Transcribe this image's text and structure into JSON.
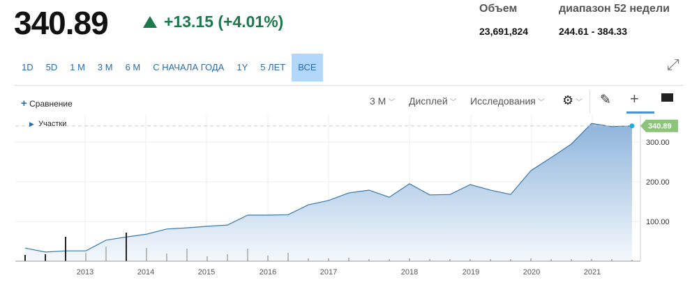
{
  "quote": {
    "price": "340.89",
    "change": "+13.15 (+4.01%)",
    "direction": "up",
    "color": "#1a7a4c"
  },
  "stats": {
    "volume_label": "Объем",
    "volume": "23,691,824",
    "range_label": "диапазон 52 недели",
    "range": "244.61 - 384.33"
  },
  "ranges": [
    {
      "label": "1D"
    },
    {
      "label": "5D"
    },
    {
      "label": "1 M"
    },
    {
      "label": "3 M"
    },
    {
      "label": "6 M"
    },
    {
      "label": "С НАЧАЛА ГОДА"
    },
    {
      "label": "1Y"
    },
    {
      "label": "5 ЛЕТ"
    },
    {
      "label": "ВСЕ",
      "active": true
    }
  ],
  "toolbar": {
    "compare": "Сравнение",
    "interval": "3 M",
    "display": "Дисплей",
    "studies": "Исследования",
    "events": "Участки"
  },
  "icons": [
    "expand-icon",
    "plus-icon",
    "gear-icon",
    "pencil-icon",
    "crosshair-icon",
    "comment-icon",
    "play-icon"
  ],
  "chart_data": {
    "type": "area",
    "x_ticks": [
      "2013",
      "2014",
      "2015",
      "2016",
      "2017",
      "2018",
      "2019",
      "2020",
      "2021"
    ],
    "y_ticks": [
      "100.00",
      "200.00",
      "300.00"
    ],
    "ylim": [
      0,
      330
    ],
    "last_label": "340.89",
    "last_color": "#8cc57a",
    "values": [
      33,
      23,
      26,
      26,
      53,
      61,
      68,
      81,
      84,
      88,
      91,
      116,
      116,
      117,
      142,
      153,
      172,
      179,
      161,
      195,
      167,
      168,
      193,
      179,
      168,
      228,
      261,
      295,
      347,
      339,
      340.89
    ],
    "volume": [
      9,
      10,
      35,
      12,
      21,
      41,
      19,
      11,
      18,
      7,
      10,
      18,
      8,
      12,
      4,
      4,
      5,
      3,
      3,
      4,
      3,
      3,
      3,
      3,
      3,
      4,
      3,
      3,
      3,
      3,
      2
    ],
    "volume_highlight": [
      0,
      1,
      2,
      5
    ]
  }
}
